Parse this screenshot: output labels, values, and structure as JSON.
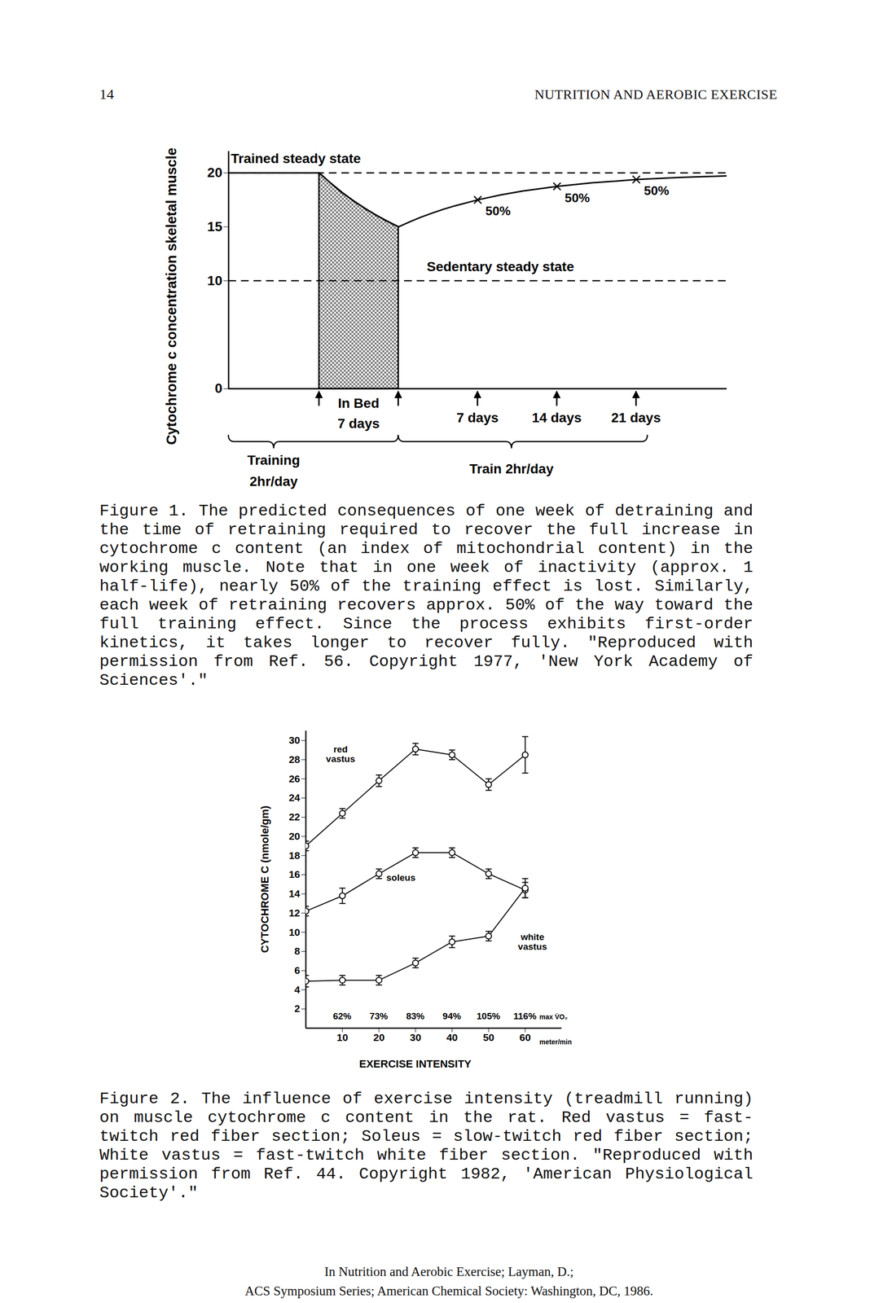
{
  "header": {
    "page_number": "14",
    "running_head": "NUTRITION AND AEROBIC EXERCISE"
  },
  "chart_data": [
    {
      "type": "line",
      "ylabel": "Cytochrome c concentration skeletal muscle",
      "x": [
        -8,
        0,
        1,
        2,
        3,
        4,
        5,
        6,
        7,
        8,
        9,
        10,
        11,
        12,
        14,
        16,
        18,
        21,
        24,
        28,
        32,
        36
      ],
      "values": [
        20,
        20,
        19.06,
        18.2,
        17.43,
        16.73,
        16.1,
        15.52,
        15,
        15.47,
        15.9,
        16.28,
        16.64,
        16.95,
        17.5,
        17.95,
        18.32,
        18.75,
        19.07,
        19.38,
        19.58,
        19.72
      ],
      "color": "#000000",
      "xlim": [
        -8,
        36
      ],
      "ylim": [
        0,
        22
      ],
      "yticks": [
        0,
        10,
        15,
        20
      ],
      "tick_labels": "y",
      "reference_lines": [
        {
          "y": 20,
          "label": "Trained steady state",
          "label_x": -7.8,
          "label_y": 21.3,
          "line_style": "dashed"
        },
        {
          "y": 10,
          "label": "Sedentary steady state",
          "label_x": 9.5,
          "label_y": 11.3,
          "line_style": "dashed"
        }
      ],
      "shaded": {
        "from": 0,
        "to": 7
      },
      "marker": "x",
      "markers": [
        {
          "x": 14,
          "y": 17.5,
          "label": "50%"
        },
        {
          "x": 21,
          "y": 18.75,
          "label": "50%"
        },
        {
          "x": 28,
          "y": 19.38,
          "label": "50%"
        }
      ],
      "arrows": [
        0,
        7,
        14,
        21,
        28
      ],
      "period_labels": [
        {
          "x": 3.5,
          "lines": [
            "In Bed",
            "7 days"
          ]
        },
        {
          "x": 14,
          "lines": [
            "7 days"
          ]
        },
        {
          "x": 21,
          "lines": [
            "14 days"
          ]
        },
        {
          "x": 28,
          "lines": [
            "21 days"
          ]
        }
      ],
      "braces": [
        {
          "from": -8,
          "to": 7,
          "tip": -4,
          "lines": [
            "Training",
            "2hr/day"
          ]
        },
        {
          "from": 7,
          "to": 29,
          "tip": 17,
          "lines": [
            "Train 2hr/day"
          ]
        }
      ],
      "caption": "Figure 1.  The predicted consequences of one week of detraining and the time of retraining required to recover the full increase in cytochrome c content (an index of mitochondrial content) in the working muscle.  Note that in one week of inactivity (approx. 1 half-life), nearly 50% of the training effect is lost.  Similarly, each week of retraining recovers approx. 50% of the way toward the full training effect.  Since the process exhibits first-order kinetics, it takes longer to recover fully.  \"Reproduced with permission from Ref. 56.  Copyright 1977, 'New York Academy of Sciences'.\""
    },
    {
      "type": "line",
      "ylabel": "CYTOCHROME C (nmole/gm)",
      "xlabel": "EXERCISE INTENSITY",
      "x_unit": "meter/min",
      "x": [
        0,
        10,
        20,
        30,
        40,
        50,
        60
      ],
      "series": [
        {
          "name": "red vastus",
          "color": "#000000",
          "values": [
            19.0,
            22.4,
            25.8,
            29.1,
            28.5,
            25.4,
            28.5
          ],
          "errors": [
            0.5,
            0.5,
            0.6,
            0.6,
            0.5,
            0.6,
            1.9
          ],
          "label_x": 9.5,
          "label_y": 28.6
        },
        {
          "name": "soleus",
          "color": "#000000",
          "values": [
            12.2,
            13.8,
            16.1,
            18.3,
            18.3,
            16.1,
            14.4
          ],
          "errors": [
            0.5,
            0.8,
            0.5,
            0.5,
            0.5,
            0.5,
            0.8
          ],
          "label_x": 26,
          "label_y": 15.7
        },
        {
          "name": "white vastus",
          "color": "#000000",
          "values": [
            4.9,
            5.0,
            5.0,
            6.8,
            9.0,
            9.6,
            14.6
          ],
          "errors": [
            0.6,
            0.5,
            0.5,
            0.5,
            0.6,
            0.5,
            1.0
          ],
          "label_x": 62,
          "label_y": 9.0
        }
      ],
      "marker": "circle",
      "xlim": [
        0,
        70
      ],
      "ylim": [
        0,
        31
      ],
      "xticks": [
        10,
        20,
        30,
        40,
        50,
        60
      ],
      "yticks": [
        2,
        4,
        6,
        8,
        10,
        12,
        14,
        16,
        18,
        20,
        22,
        24,
        26,
        28,
        30
      ],
      "intensity_labels": {
        "x": [
          10,
          20,
          30,
          40,
          50,
          60
        ],
        "labels": [
          "62%",
          "73%",
          "83%",
          "94%",
          "105%",
          "116%"
        ],
        "unit": "max V̇O₂"
      },
      "caption": "Figure 2.  The influence of exercise intensity (treadmill running) on muscle cytochrome c content in the rat.  Red vastus = fast-twitch red fiber section; Soleus = slow-twitch red fiber section; White vastus = fast-twitch white fiber section.  \"Reproduced with permission from Ref. 44.  Copyright 1982, 'American Physiological Society'.\""
    }
  ],
  "footer": [
    "In Nutrition and Aerobic Exercise; Layman, D.;",
    "ACS Symposium Series; American Chemical Society: Washington, DC, 1986."
  ]
}
